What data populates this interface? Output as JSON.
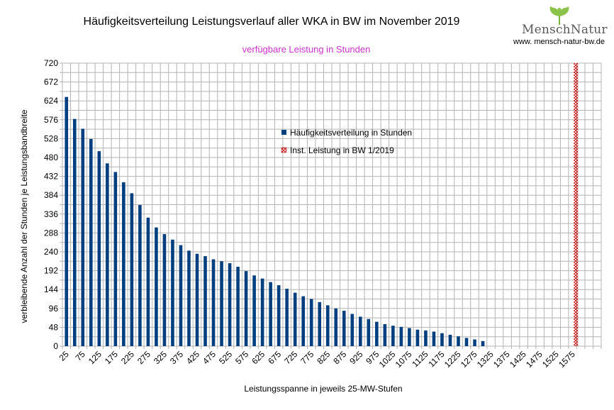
{
  "chart_data": {
    "type": "bar",
    "title": "Häufigkeitsverteilung Leistungsverlauf aller WKA in BW im November 2019",
    "subtitle": "verfügbare Leistung in Stunden",
    "xlabel": "Leistungsspanne in jeweils 25-MW-Stufen",
    "ylabel": "verbleibende Anzahl der Stunden je Leistungsbandbreite",
    "ylim": [
      0,
      720
    ],
    "yticks": [
      0,
      48,
      96,
      144,
      192,
      240,
      288,
      336,
      384,
      432,
      480,
      528,
      576,
      624,
      672,
      720
    ],
    "xticks": [
      25,
      75,
      125,
      175,
      225,
      275,
      325,
      375,
      425,
      475,
      525,
      575,
      625,
      675,
      725,
      775,
      825,
      875,
      925,
      975,
      1025,
      1075,
      1125,
      1175,
      1225,
      1275,
      1325,
      1375,
      1425,
      1475,
      1525,
      1575
    ],
    "grid": true,
    "legend_position": "center",
    "series": [
      {
        "name": "Häufigkeitsverteilung in Stunden",
        "color": "#003f7f",
        "x": [
          25,
          50,
          75,
          100,
          125,
          150,
          175,
          200,
          225,
          250,
          275,
          300,
          325,
          350,
          375,
          400,
          425,
          450,
          475,
          500,
          525,
          550,
          575,
          600,
          625,
          650,
          675,
          700,
          725,
          750,
          775,
          800,
          825,
          850,
          875,
          900,
          925,
          950,
          975,
          1000,
          1025,
          1050,
          1075,
          1100,
          1125,
          1150,
          1175,
          1200,
          1225,
          1250,
          1275,
          1300
        ],
        "values": [
          634,
          578,
          553,
          527,
          496,
          465,
          443,
          417,
          389,
          359,
          327,
          302,
          285,
          271,
          257,
          243,
          235,
          229,
          221,
          216,
          211,
          202,
          191,
          180,
          172,
          163,
          155,
          146,
          136,
          127,
          120,
          112,
          104,
          96,
          90,
          82,
          75,
          69,
          62,
          56,
          52,
          49,
          46,
          42,
          40,
          37,
          33,
          29,
          25,
          21,
          17,
          13
        ]
      },
      {
        "name": "Inst. Leistung in BW 1/2019",
        "color": "#c00000",
        "x": 1585
      }
    ]
  },
  "logo": {
    "brand": "MenschNatur",
    "url": "www. mensch-natur-bw.de"
  }
}
